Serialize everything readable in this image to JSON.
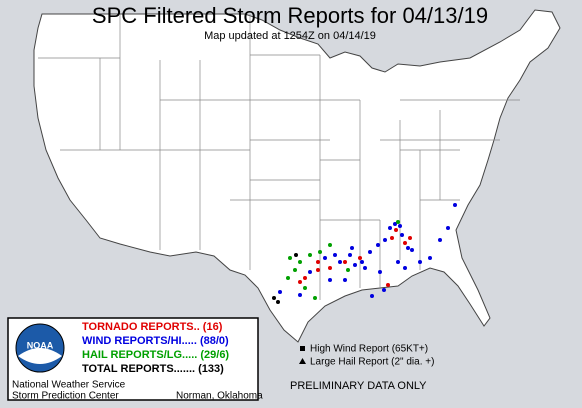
{
  "header": {
    "title": "SPC Filtered Storm Reports for 04/13/19",
    "subtitle": "Map updated at 1254Z on 04/14/19"
  },
  "legend": {
    "tornado": "TORNADO REPORTS.. (16)",
    "wind": "WIND REPORTS/HI..... (88/0)",
    "hail": "HAIL REPORTS/LG..... (29/6)",
    "total": "TOTAL REPORTS....... (133)"
  },
  "agency": {
    "logo": "NOAA",
    "line1": "National Weather Service",
    "line2": "Storm Prediction Center",
    "location": "Norman, Oklahoma"
  },
  "key": {
    "wind": "High Wind Report (65KT+)",
    "hail": "Large Hail Report (2\" dia. +)"
  },
  "notice": "PRELIMINARY DATA ONLY"
}
